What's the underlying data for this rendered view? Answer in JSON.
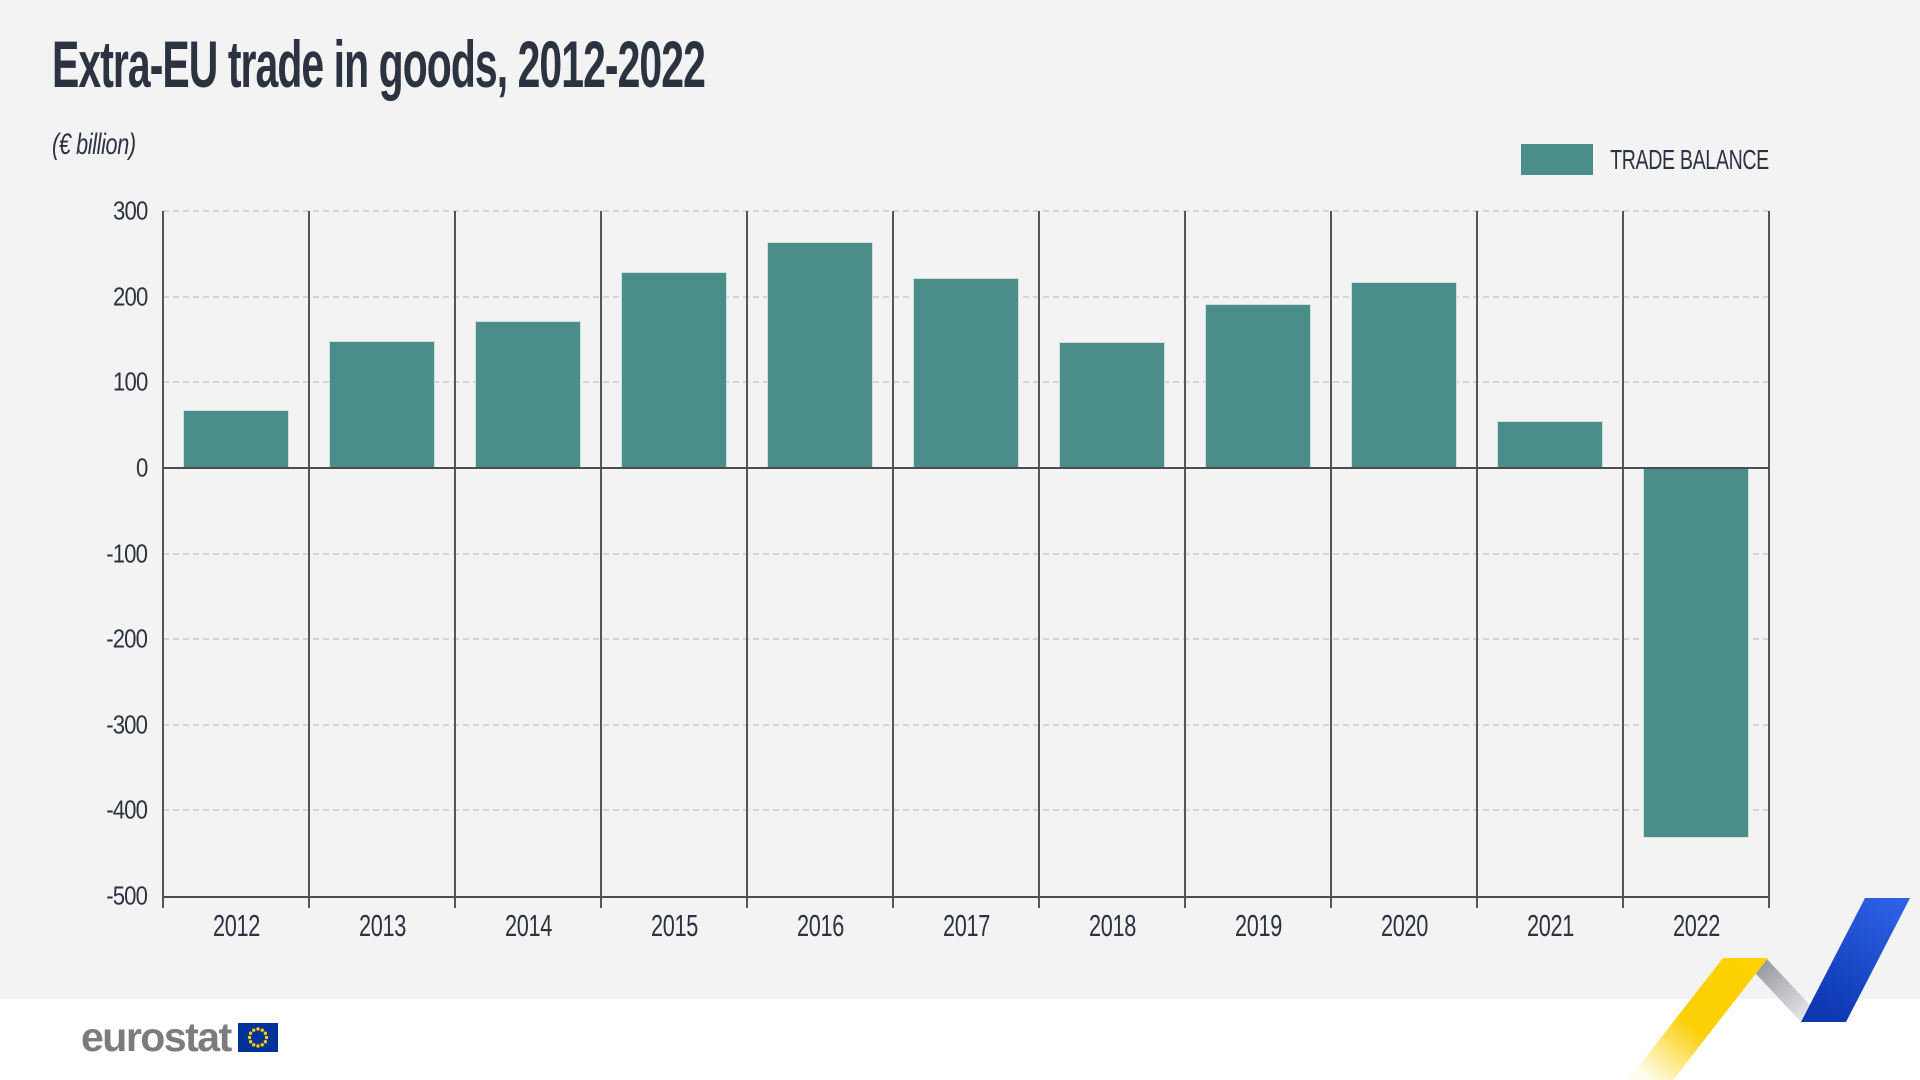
{
  "header": {
    "title": "Extra-EU trade in goods, 2012-2022",
    "subtitle": "(€ billion)"
  },
  "legend": {
    "label": "TRADE BALANCE",
    "swatch_color": "#4a8d89",
    "position": "top-right"
  },
  "chart_data": {
    "type": "bar",
    "title": "Extra-EU trade in goods, 2012-2022",
    "unit": "€ billion",
    "categories": [
      "2012",
      "2013",
      "2014",
      "2015",
      "2016",
      "2017",
      "2018",
      "2019",
      "2020",
      "2021",
      "2022"
    ],
    "series": [
      {
        "name": "TRADE BALANCE",
        "color": "#4a8d89",
        "values": [
          68,
          148,
          171,
          229,
          264,
          222,
          147,
          191,
          217,
          55,
          -432
        ]
      }
    ],
    "ylim": [
      -500,
      300
    ],
    "yticks": [
      300,
      200,
      100,
      0,
      -100,
      -200,
      -300,
      -400,
      -500
    ],
    "grid": {
      "horizontal": "dashed",
      "vertical_column_separators": true
    },
    "legend_position": "top-right"
  },
  "footer": {
    "logo_text": "eurostat"
  },
  "colors": {
    "canvas_background": "#f3f3f3",
    "footer_background": "#ffffff",
    "bar": "#4a8d89",
    "text": "#2b3240",
    "axis": "#4d4d4d",
    "gridline": "#d5d5d5",
    "eurostat_gray": "#7b7b80",
    "eu_blue": "#003399",
    "star_yellow": "#ffcc00",
    "ribbon_yellow": "#ffd200",
    "ribbon_silver": "#9b9da4",
    "ribbon_blue": "#1c4fd6"
  }
}
